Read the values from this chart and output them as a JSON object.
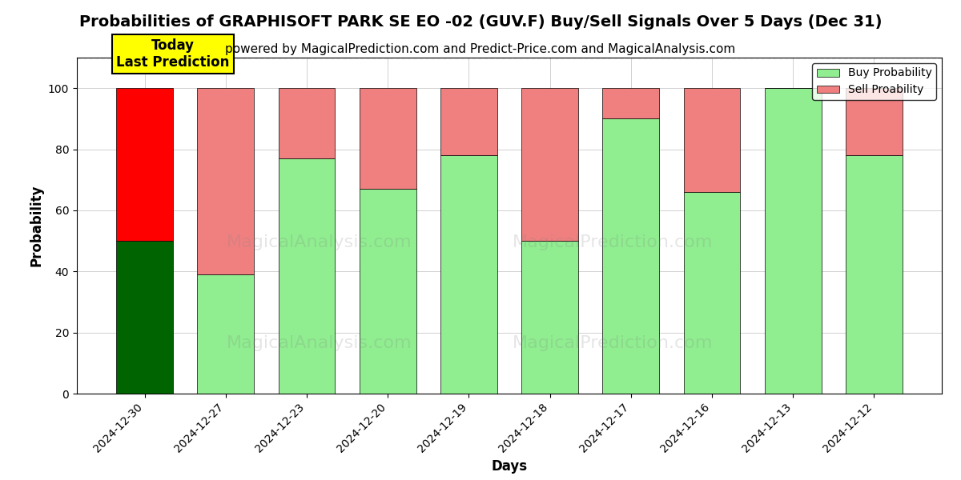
{
  "title": "Probabilities of GRAPHISOFT PARK SE EO -02 (GUV.F) Buy/Sell Signals Over 5 Days (Dec 31)",
  "subtitle": "powered by MagicalPrediction.com and Predict-Price.com and MagicalAnalysis.com",
  "xlabel": "Days",
  "ylabel": "Probability",
  "categories": [
    "2024-12-30",
    "2024-12-27",
    "2024-12-23",
    "2024-12-20",
    "2024-12-19",
    "2024-12-18",
    "2024-12-17",
    "2024-12-16",
    "2024-12-13",
    "2024-12-12"
  ],
  "buy_values": [
    50,
    39,
    77,
    67,
    78,
    50,
    90,
    66,
    100,
    78
  ],
  "sell_values": [
    50,
    61,
    23,
    33,
    22,
    50,
    10,
    34,
    0,
    22
  ],
  "today_buy_color": "#006400",
  "today_sell_color": "#ff0000",
  "buy_color": "#90EE90",
  "sell_color": "#F08080",
  "today_label_bg": "#ffff00",
  "today_label_text": "Today\nLast Prediction",
  "legend_buy": "Buy Probability",
  "legend_sell": "Sell Proability",
  "ylim": [
    0,
    110
  ],
  "yticks": [
    0,
    20,
    40,
    60,
    80,
    100
  ],
  "dashed_line_y": 110,
  "bar_width": 0.7,
  "title_fontsize": 14,
  "subtitle_fontsize": 11,
  "axis_label_fontsize": 12,
  "tick_fontsize": 10
}
